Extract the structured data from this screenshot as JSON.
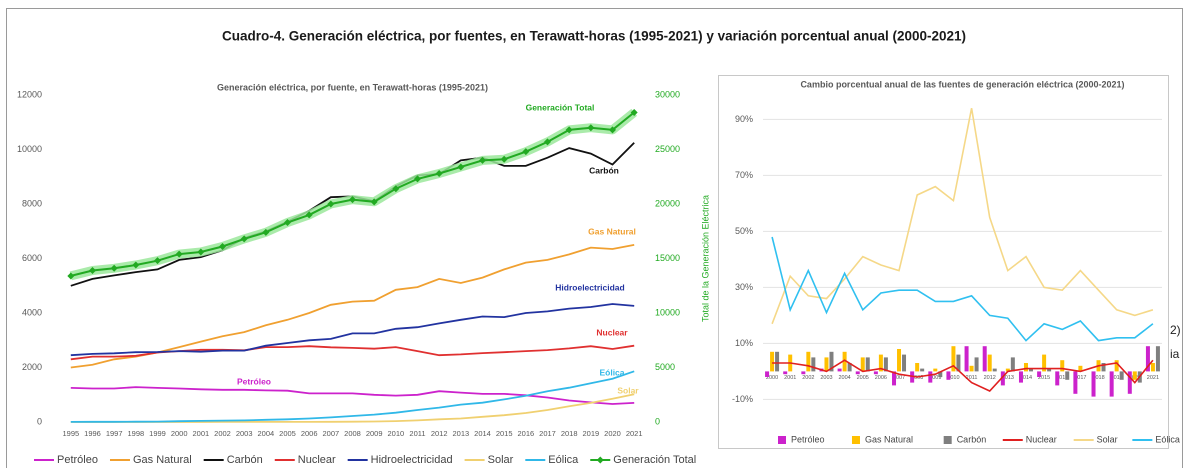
{
  "title": "Cuadro-4. Generación eléctrica, por fuentes, en Terawatt-horas (1995-2021) y variación porcentual anual (2000-2021)",
  "fragments": [
    "2)",
    "ia"
  ],
  "chart_data": [
    {
      "type": "line",
      "title": "Generación eléctrica, por fuente, en Terawatt-horas (1995-2021)",
      "y2label": "Total de la Generación Eléctrica",
      "categories": [
        "1995",
        "1996",
        "1997",
        "1998",
        "1999",
        "2000",
        "2001",
        "2002",
        "2003",
        "2004",
        "2005",
        "2006",
        "2007",
        "2008",
        "2009",
        "2010",
        "2011",
        "2012",
        "2013",
        "2014",
        "2015",
        "2016",
        "2017",
        "2018",
        "2019",
        "2020",
        "2021"
      ],
      "ylim": [
        0,
        12000
      ],
      "yticks": [
        0,
        2000,
        4000,
        6000,
        8000,
        10000,
        12000
      ],
      "y2lim": [
        0,
        30000
      ],
      "y2ticks": [
        0,
        5000,
        10000,
        15000,
        20000,
        25000,
        30000
      ],
      "grid": false,
      "legend": "bottom",
      "series": [
        {
          "name": "Petróleo",
          "color": "#cc22cc",
          "values": [
            1250,
            1230,
            1230,
            1280,
            1250,
            1230,
            1200,
            1180,
            1180,
            1160,
            1150,
            1050,
            1050,
            1050,
            1000,
            970,
            1000,
            1130,
            1080,
            1030,
            1030,
            980,
            900,
            790,
            720,
            660,
            700
          ]
        },
        {
          "name": "Gas Natural",
          "color": "#f0a030",
          "values": [
            2000,
            2100,
            2300,
            2400,
            2550,
            2750,
            2950,
            3150,
            3300,
            3550,
            3750,
            4000,
            4300,
            4420,
            4450,
            4850,
            4950,
            5250,
            5100,
            5300,
            5600,
            5850,
            5950,
            6150,
            6400,
            6350,
            6500
          ]
        },
        {
          "name": "Carbón",
          "color": "#111111",
          "values": [
            5000,
            5250,
            5380,
            5500,
            5600,
            5950,
            6050,
            6300,
            6750,
            7000,
            7350,
            7750,
            8250,
            8280,
            8100,
            8650,
            9050,
            9100,
            9600,
            9700,
            9400,
            9400,
            9700,
            10050,
            9850,
            9450,
            10250
          ]
        },
        {
          "name": "Nuclear",
          "color": "#e03030",
          "values": [
            2300,
            2400,
            2400,
            2430,
            2550,
            2600,
            2650,
            2650,
            2630,
            2750,
            2750,
            2780,
            2740,
            2720,
            2690,
            2750,
            2600,
            2450,
            2480,
            2530,
            2560,
            2600,
            2640,
            2700,
            2780,
            2680,
            2800
          ]
        },
        {
          "name": "Hidroelectricidad",
          "color": "#2233a0",
          "values": [
            2450,
            2500,
            2520,
            2560,
            2570,
            2600,
            2580,
            2620,
            2620,
            2800,
            2900,
            3000,
            3050,
            3250,
            3250,
            3420,
            3480,
            3620,
            3750,
            3870,
            3850,
            4000,
            4060,
            4160,
            4220,
            4330,
            4260
          ]
        },
        {
          "name": "Solar",
          "color": "#f0d070",
          "values": [
            0,
            0,
            0,
            0,
            0,
            1,
            1,
            2,
            3,
            3,
            4,
            5,
            8,
            12,
            20,
            32,
            60,
            100,
            130,
            190,
            250,
            330,
            440,
            580,
            700,
            850,
            1020
          ]
        },
        {
          "name": "Eólica",
          "color": "#30b8e8",
          "values": [
            4,
            6,
            8,
            10,
            15,
            30,
            40,
            50,
            60,
            80,
            100,
            130,
            170,
            220,
            270,
            340,
            440,
            530,
            640,
            710,
            830,
            960,
            1130,
            1260,
            1420,
            1590,
            1860
          ]
        },
        {
          "name": "Generación Total",
          "color": "#22aa22",
          "axis": "y2",
          "marker": "diamond",
          "glow": "#9be89b",
          "values": [
            13400,
            13900,
            14100,
            14400,
            14800,
            15400,
            15600,
            16100,
            16800,
            17400,
            18300,
            19000,
            20000,
            20400,
            20200,
            21400,
            22300,
            22800,
            23400,
            24000,
            24100,
            24800,
            25700,
            26800,
            27000,
            26800,
            28400
          ]
        }
      ]
    },
    {
      "type": "combo",
      "title": "Cambio porcentual anual de las fuentes de generación eléctrica (2000-2021)",
      "categories": [
        "2000",
        "2001",
        "2002",
        "2003",
        "2004",
        "2005",
        "2006",
        "2007",
        "2008",
        "2009",
        "2010",
        "2011",
        "2012",
        "2013",
        "2014",
        "2015",
        "2016",
        "2017",
        "2018",
        "2019",
        "2020",
        "2021"
      ],
      "ylim": [
        -17,
        98
      ],
      "yticks": [
        {
          "value": -10,
          "label": "-10%"
        },
        {
          "value": 10,
          "label": "10%"
        },
        {
          "value": 30,
          "label": "30%"
        },
        {
          "value": 50,
          "label": "50%"
        },
        {
          "value": 70,
          "label": "70%"
        },
        {
          "value": 90,
          "label": "90%"
        }
      ],
      "grid": true,
      "legend": "bottom",
      "series": [
        {
          "name": "Petróleo",
          "kind": "bar",
          "color": "#cc22cc",
          "values": [
            -2,
            -1,
            -1,
            1,
            1,
            -1,
            -1,
            -5,
            -4,
            -4,
            -3,
            9,
            9,
            -5,
            -4,
            -2,
            -5,
            -8,
            -9,
            -9,
            -8,
            9
          ]
        },
        {
          "name": "Gas Natural",
          "kind": "bar",
          "color": "#ffc000",
          "values": [
            7,
            6,
            7,
            5,
            7,
            5,
            6,
            8,
            3,
            1,
            9,
            2,
            6,
            1,
            3,
            6,
            4,
            2,
            4,
            4,
            -3,
            3
          ]
        },
        {
          "name": "Carbón",
          "kind": "bar",
          "color": "#7f7f7f",
          "values": [
            7,
            0,
            5,
            7,
            3,
            5,
            5,
            6,
            1,
            -2,
            6,
            5,
            1,
            5,
            1,
            1,
            -3,
            0,
            3,
            -3,
            -4,
            9
          ]
        },
        {
          "name": "Nuclear",
          "kind": "line",
          "color": "#e02020",
          "values": [
            3,
            3,
            2,
            0,
            4,
            0,
            1,
            -1,
            -2,
            -1,
            2,
            -4,
            -7,
            0,
            1,
            1,
            1,
            0,
            2,
            3,
            -4,
            4
          ]
        },
        {
          "name": "Solar",
          "kind": "line",
          "color": "#f5d888",
          "values": [
            17,
            34,
            27,
            26,
            33,
            41,
            38,
            36,
            63,
            66,
            61,
            94,
            55,
            36,
            41,
            30,
            29,
            36,
            29,
            22,
            20,
            22
          ]
        },
        {
          "name": "Eólica",
          "kind": "line",
          "color": "#30c0f0",
          "values": [
            48,
            22,
            36,
            21,
            35,
            22,
            28,
            29,
            29,
            25,
            25,
            27,
            20,
            19,
            11,
            17,
            15,
            18,
            11,
            12,
            12,
            17
          ]
        }
      ]
    }
  ]
}
